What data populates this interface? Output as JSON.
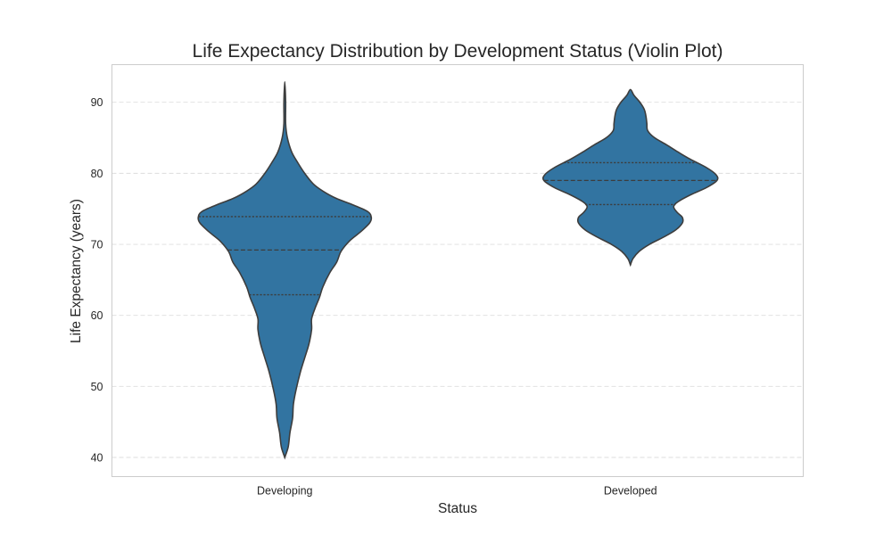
{
  "chart_data": {
    "type": "violin",
    "title": "Life Expectancy Distribution by Development Status (Violin Plot)",
    "xlabel": "Status",
    "ylabel": "Life Expectancy (years)",
    "categories": [
      "Developing",
      "Developed"
    ],
    "ylim": [
      37.3,
      95.3
    ],
    "yticks": [
      40,
      50,
      60,
      70,
      80,
      90
    ],
    "grid": "horizontal-dashed",
    "color": "#3274a1",
    "series": [
      {
        "category": "Developing",
        "min": 40.0,
        "max": 92.9,
        "quartiles": {
          "q1": 62.9,
          "median": 69.2,
          "q3": 73.9
        },
        "density_profile": [
          [
            40.0,
            0.0
          ],
          [
            41.5,
            0.04
          ],
          [
            43.5,
            0.06
          ],
          [
            45.5,
            0.09
          ],
          [
            47.5,
            0.1
          ],
          [
            49.5,
            0.13
          ],
          [
            52,
            0.18
          ],
          [
            54,
            0.23
          ],
          [
            56,
            0.28
          ],
          [
            58,
            0.31
          ],
          [
            59.5,
            0.31
          ],
          [
            61,
            0.35
          ],
          [
            62.5,
            0.4
          ],
          [
            64,
            0.44
          ],
          [
            66,
            0.52
          ],
          [
            67.5,
            0.6
          ],
          [
            69,
            0.65
          ],
          [
            70.5,
            0.75
          ],
          [
            71.8,
            0.88
          ],
          [
            73,
            0.98
          ],
          [
            73.8,
            1.0
          ],
          [
            74.6,
            0.96
          ],
          [
            75.5,
            0.8
          ],
          [
            76.5,
            0.59
          ],
          [
            77.5,
            0.44
          ],
          [
            78.5,
            0.33
          ],
          [
            80,
            0.23
          ],
          [
            81.5,
            0.15
          ],
          [
            83,
            0.08
          ],
          [
            85,
            0.03
          ],
          [
            87,
            0.01
          ],
          [
            90,
            0.01
          ],
          [
            92.9,
            0.0
          ]
        ]
      },
      {
        "category": "Developed",
        "min": 67.1,
        "max": 91.8,
        "quartiles": {
          "q1": 75.6,
          "median": 79.0,
          "q3": 81.5
        },
        "density_profile": [
          [
            67.1,
            0.0
          ],
          [
            68,
            0.03
          ],
          [
            69,
            0.1
          ],
          [
            70,
            0.22
          ],
          [
            71,
            0.38
          ],
          [
            72,
            0.52
          ],
          [
            73,
            0.6
          ],
          [
            73.8,
            0.6
          ],
          [
            74.5,
            0.54
          ],
          [
            75.3,
            0.5
          ],
          [
            76,
            0.55
          ],
          [
            77,
            0.7
          ],
          [
            78,
            0.88
          ],
          [
            79,
            1.0
          ],
          [
            79.8,
            0.99
          ],
          [
            80.8,
            0.88
          ],
          [
            82,
            0.69
          ],
          [
            83,
            0.55
          ],
          [
            84,
            0.42
          ],
          [
            85,
            0.28
          ],
          [
            86,
            0.2
          ],
          [
            87,
            0.19
          ],
          [
            88,
            0.18
          ],
          [
            89,
            0.16
          ],
          [
            90,
            0.11
          ],
          [
            91,
            0.04
          ],
          [
            91.8,
            0.0
          ]
        ]
      }
    ]
  }
}
